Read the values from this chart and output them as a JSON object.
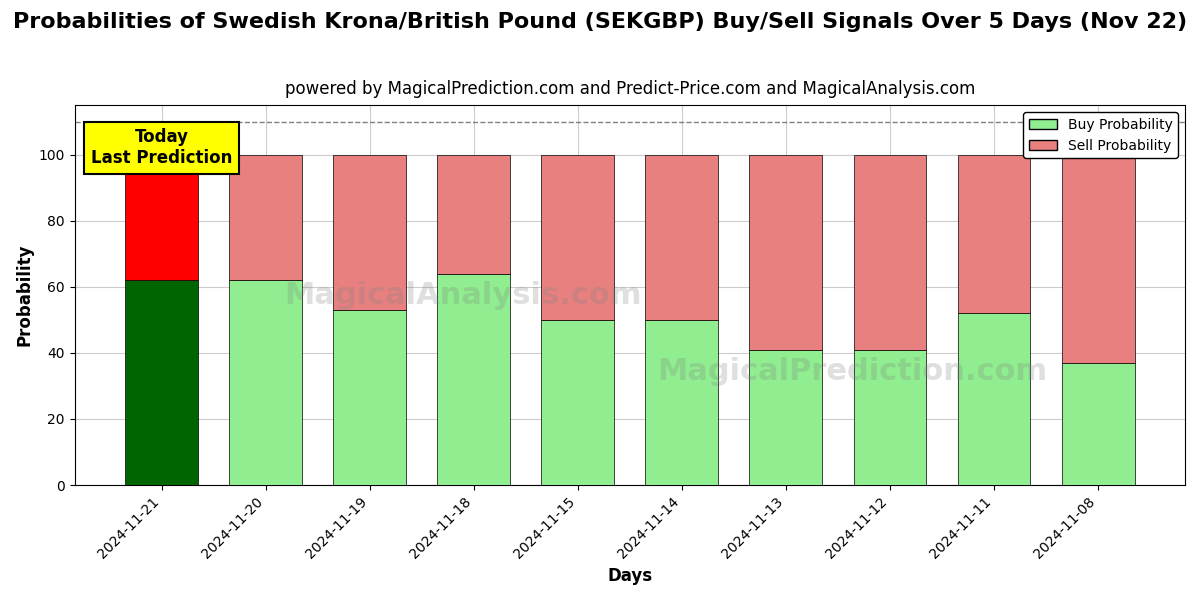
{
  "title": "Probabilities of Swedish Krona/British Pound (SEKGBP) Buy/Sell Signals Over 5 Days (Nov 22)",
  "subtitle": "powered by MagicalPrediction.com and Predict-Price.com and MagicalAnalysis.com",
  "xlabel": "Days",
  "ylabel": "Probability",
  "categories": [
    "2024-11-21",
    "2024-11-20",
    "2024-11-19",
    "2024-11-18",
    "2024-11-15",
    "2024-11-14",
    "2024-11-13",
    "2024-11-12",
    "2024-11-11",
    "2024-11-08"
  ],
  "buy_values": [
    62,
    62,
    53,
    64,
    50,
    50,
    41,
    41,
    52,
    37
  ],
  "sell_values": [
    38,
    38,
    47,
    36,
    50,
    50,
    59,
    59,
    48,
    63
  ],
  "today_buy_color": "#006400",
  "today_sell_color": "#FF0000",
  "buy_color": "#90EE90",
  "sell_color": "#E88080",
  "today_annotation_bg": "#FFFF00",
  "today_annotation_text": "Today\nLast Prediction",
  "ylim": [
    0,
    115
  ],
  "yticks": [
    0,
    20,
    40,
    60,
    80,
    100
  ],
  "dashed_line_y": 110,
  "watermark_texts": [
    "MagicalAnalysis.com",
    "MagicalPrediction.com"
  ],
  "legend_buy_label": "Buy Probability",
  "legend_sell_label": "Sell Probability",
  "title_fontsize": 16,
  "subtitle_fontsize": 12,
  "axis_label_fontsize": 12,
  "tick_fontsize": 10,
  "figsize": [
    12,
    6
  ],
  "dpi": 100,
  "bg_color": "#ffffff",
  "plot_bg_color": "#ffffff",
  "grid_color": "#cccccc"
}
